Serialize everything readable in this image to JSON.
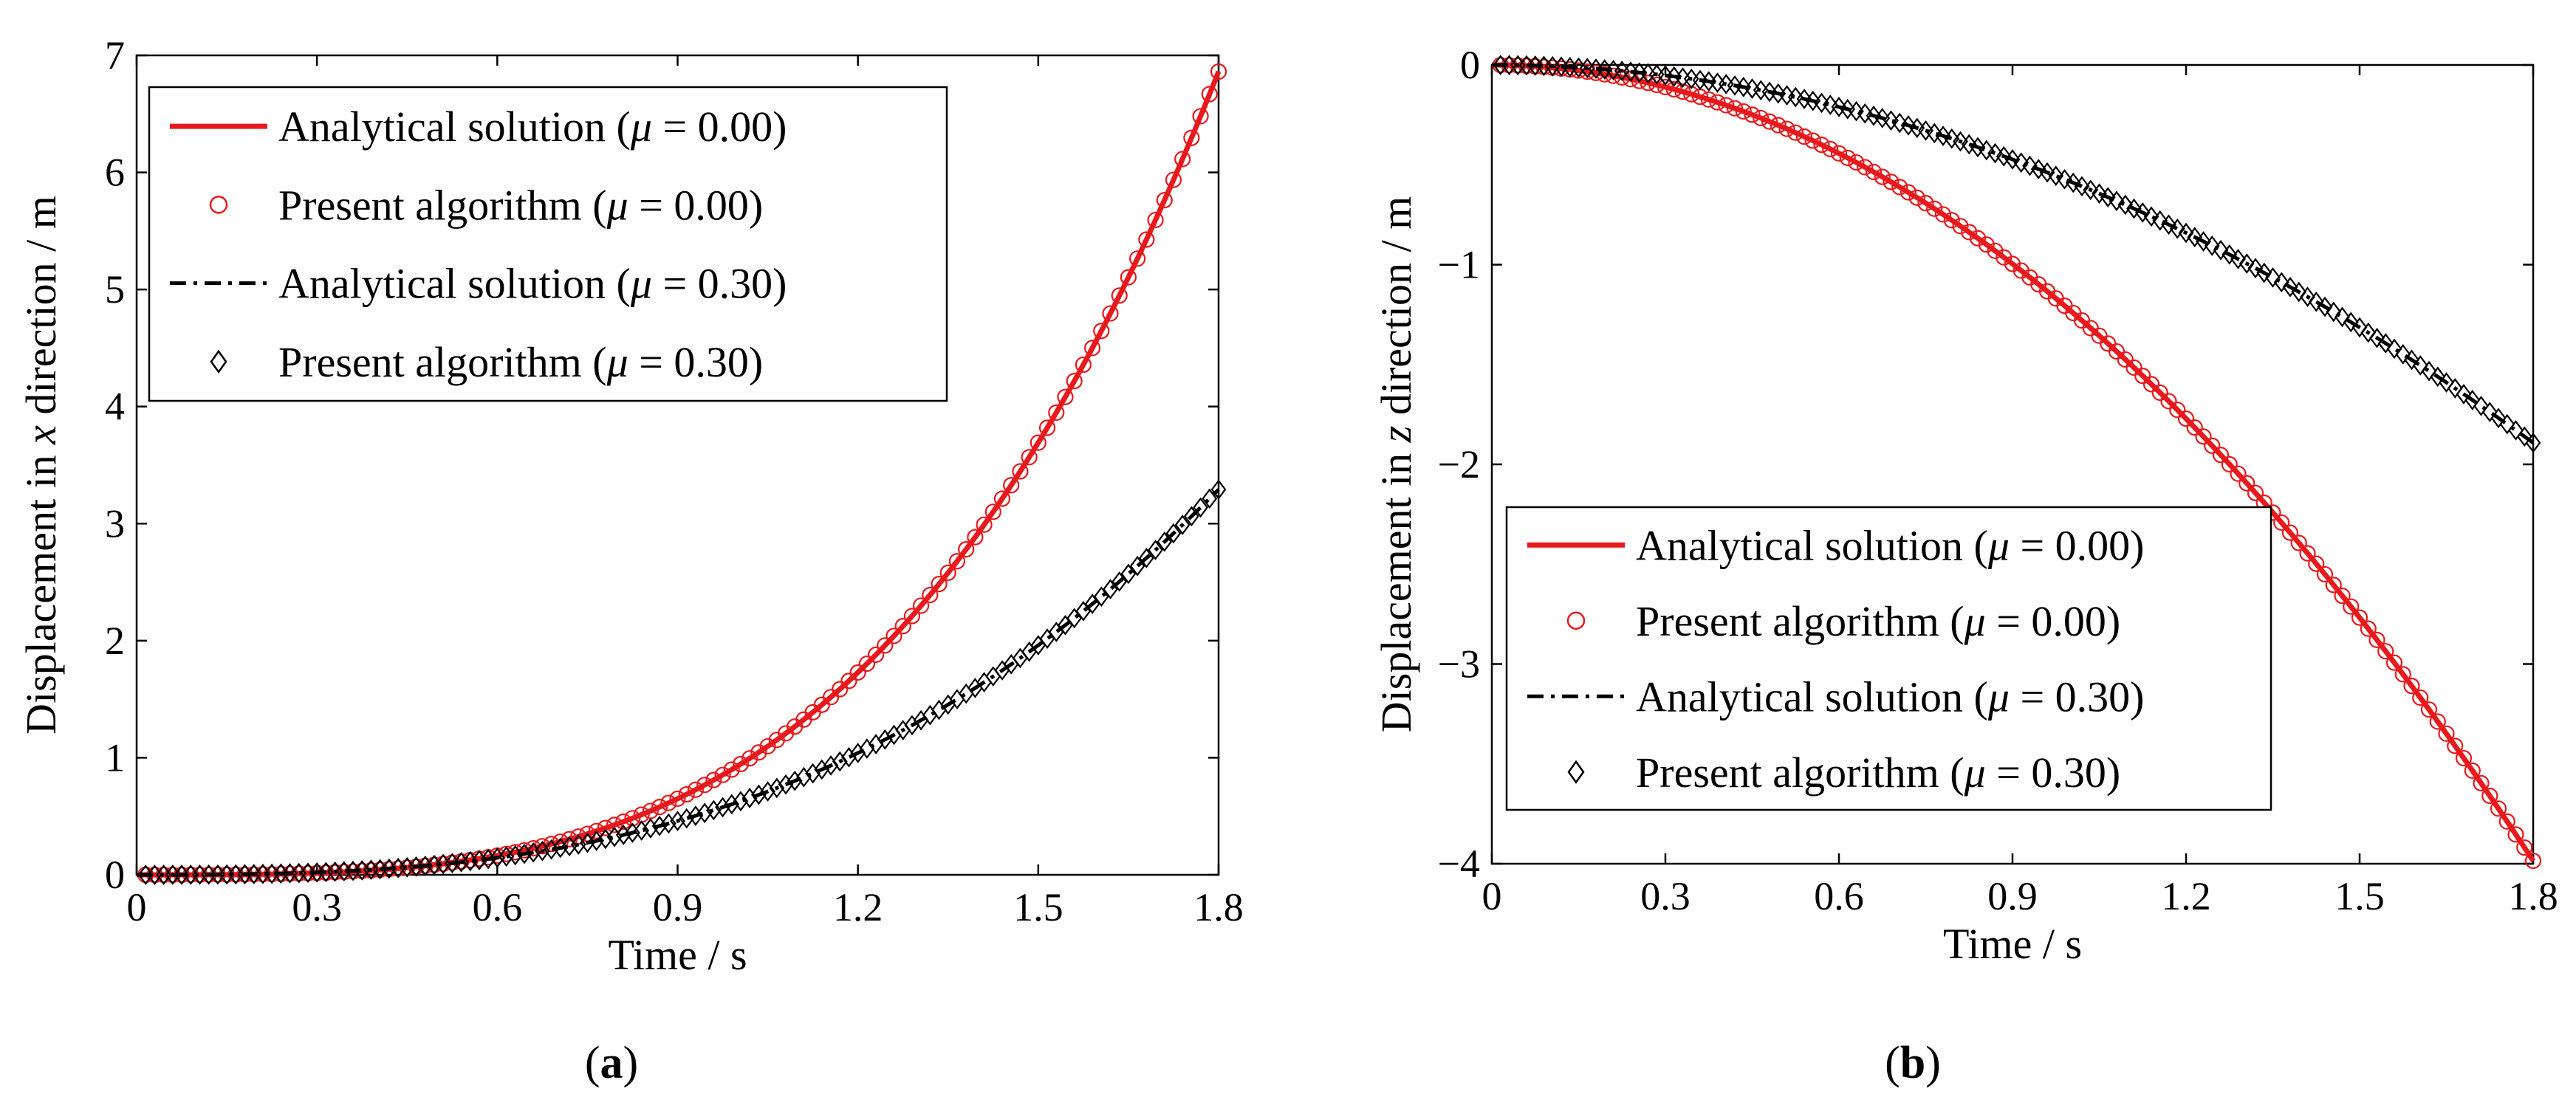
{
  "chart_data": [
    {
      "panel": "a",
      "caption": "(a)",
      "type": "line",
      "title": "",
      "xlabel": "Time / s",
      "ylabel_parts": [
        "Displacement in ",
        "x",
        " direction / m"
      ],
      "xlim": [
        0,
        1.8
      ],
      "ylim": [
        0,
        7
      ],
      "xticks": [
        0,
        0.3,
        0.6,
        0.9,
        1.2,
        1.5,
        1.8
      ],
      "xtick_labels": [
        "0",
        "0.3",
        "0.6",
        "0.9",
        "1.2",
        "1.5",
        "1.8"
      ],
      "yticks": [
        0,
        1,
        2,
        3,
        4,
        5,
        6,
        7
      ],
      "ytick_labels": [
        "0",
        "1",
        "2",
        "3",
        "4",
        "5",
        "6",
        "7"
      ],
      "grid": false,
      "legend_position": "top-left",
      "series": [
        {
          "name": "Analytical solution (μ = 0.00)",
          "legend_prefix": "Analytical solution (",
          "legend_suffix": " = 0.00)",
          "style": "solid",
          "color": "#e8191c",
          "marker": "none",
          "model": "power",
          "a": 0.93,
          "p": 3.4,
          "x_end": 1.8
        },
        {
          "name": "Present algorithm (μ = 0.00)",
          "legend_prefix": "Present algorithm (",
          "legend_suffix": " = 0.00)",
          "style": "none",
          "color": "#e8191c",
          "marker": "circle",
          "model": "power",
          "a": 0.93,
          "p": 3.4,
          "x_end": 1.8
        },
        {
          "name": "Analytical solution (μ = 0.30)",
          "legend_prefix": "Analytical solution (",
          "legend_suffix": " = 0.30)",
          "style": "dashdot",
          "color": "#000000",
          "marker": "none",
          "model": "power",
          "a": 0.62,
          "p": 2.84,
          "x_end": 1.8
        },
        {
          "name": "Present algorithm (μ = 0.30)",
          "legend_prefix": "Present algorithm  (",
          "legend_suffix": " = 0.30)",
          "style": "none",
          "color": "#000000",
          "marker": "diamond",
          "model": "power",
          "a": 0.62,
          "p": 2.84,
          "x_end": 1.8
        }
      ]
    },
    {
      "panel": "b",
      "caption": "(b)",
      "type": "line",
      "title": "",
      "xlabel": "Time / s",
      "ylabel_parts": [
        "Displacement in ",
        "z",
        " direction / m"
      ],
      "xlim": [
        0,
        1.8
      ],
      "ylim": [
        -4,
        0
      ],
      "xticks": [
        0,
        0.3,
        0.6,
        0.9,
        1.2,
        1.5,
        1.8
      ],
      "xtick_labels": [
        "0",
        "0.3",
        "0.6",
        "0.9",
        "1.2",
        "1.5",
        "1.8"
      ],
      "yticks": [
        -4,
        -3,
        -2,
        -1,
        0
      ],
      "ytick_labels": [
        "−4",
        "−3",
        "−2",
        "−1",
        "0"
      ],
      "grid": false,
      "legend_position": "bottom-left",
      "series": [
        {
          "name": "Analytical solution (μ = 0.00)",
          "legend_prefix": "Analytical solution (",
          "legend_suffix": " = 0.00)",
          "style": "solid",
          "color": "#e8191c",
          "marker": "none",
          "model": "power",
          "a": -1.23,
          "p": 2.0,
          "x_end": 1.8
        },
        {
          "name": "Present algorithm (μ = 0.00)",
          "legend_prefix": "Present algorithm (",
          "legend_suffix": " = 0.00)",
          "style": "none",
          "color": "#e8191c",
          "marker": "circle",
          "model": "power",
          "a": -1.23,
          "p": 2.0,
          "x_end": 1.8
        },
        {
          "name": "Analytical solution (μ = 0.30)",
          "legend_prefix": "Analytical solution (",
          "legend_suffix": " = 0.30)",
          "style": "dashdot",
          "color": "#000000",
          "marker": "none",
          "model": "power",
          "a": -0.584,
          "p": 2.0,
          "x_end": 1.8
        },
        {
          "name": "Present algorithm (μ = 0.30)",
          "legend_prefix": "Present algorithm  (",
          "legend_suffix": " = 0.30)",
          "style": "none",
          "color": "#000000",
          "marker": "diamond",
          "model": "power",
          "a": -0.584,
          "p": 2.0,
          "x_end": 1.8
        }
      ]
    }
  ],
  "legend_symbol": "μ",
  "marker_step": 0.015
}
